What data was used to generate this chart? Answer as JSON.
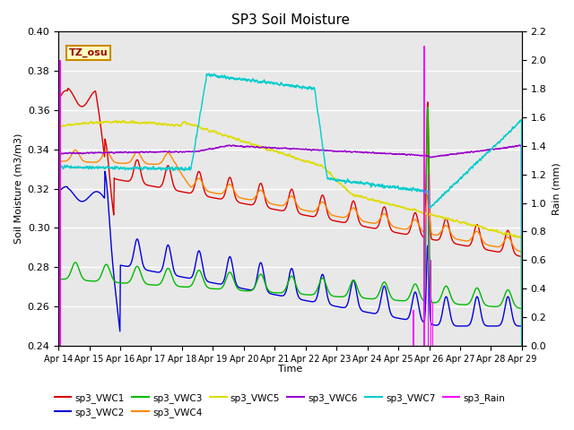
{
  "title": "SP3 Soil Moisture",
  "ylabel_left": "Soil Moisture (m3/m3)",
  "ylabel_right": "Rain (mm)",
  "xlabel": "Time",
  "annotation": "TZ_osu",
  "ylim_left": [
    0.24,
    0.4
  ],
  "ylim_right": [
    0.0,
    2.2
  ],
  "bg_color": "#e8e8e8",
  "series_colors": {
    "sp3_VWC1": "#dd0000",
    "sp3_VWC2": "#0000dd",
    "sp3_VWC3": "#00bb00",
    "sp3_VWC4": "#ff8800",
    "sp3_VWC5": "#dddd00",
    "sp3_VWC6": "#9900cc",
    "sp3_VWC7": "#00cccc",
    "sp3_Rain": "#ff00ff"
  },
  "x_tick_labels": [
    "Apr 14",
    "Apr 15",
    "Apr 16",
    "Apr 17",
    "Apr 18",
    "Apr 19",
    "Apr 20",
    "Apr 21",
    "Apr 22",
    "Apr 23",
    "Apr 24",
    "Apr 25",
    "Apr 26",
    "Apr 27",
    "Apr 28",
    "Apr 29"
  ],
  "n_points": 3000
}
